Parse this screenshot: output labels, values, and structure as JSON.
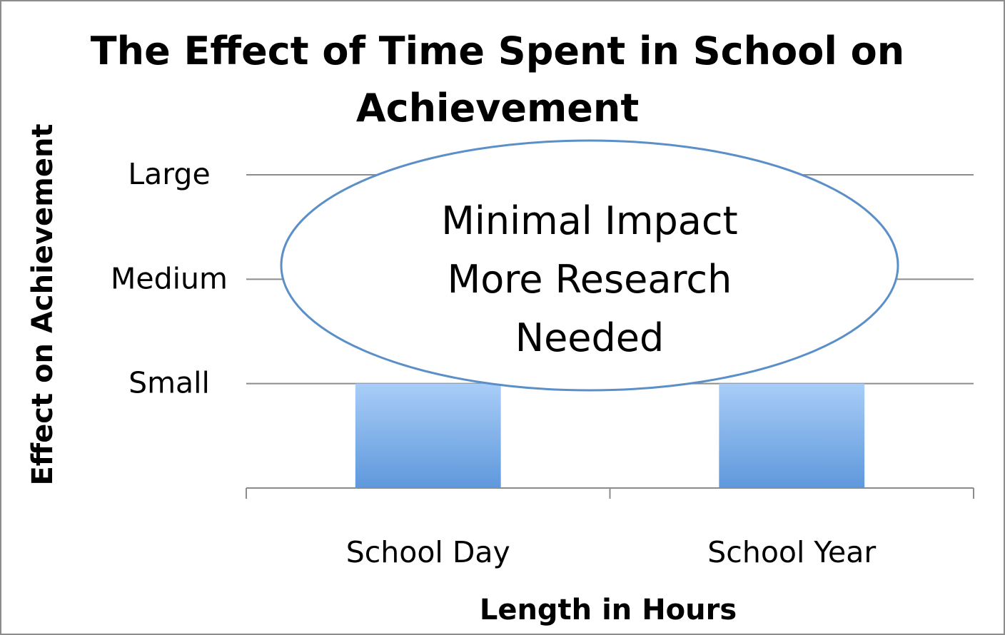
{
  "chart_data": {
    "type": "bar",
    "title": "The Effect of Time Spent in School on Achievement",
    "xlabel": "Length in Hours",
    "ylabel": "Effect on Achievement",
    "categories": [
      "School Day",
      "School Year"
    ],
    "values": [
      1,
      1
    ],
    "y_tick_labels": [
      "Small",
      "Medium",
      "Large"
    ],
    "y_tick_values": [
      1,
      2,
      3
    ],
    "ylim": [
      0,
      3
    ],
    "grid": true,
    "bar_color": "#7fb2ea",
    "annotation": {
      "lines": [
        "Minimal Impact",
        "More Research",
        "Needed"
      ],
      "shape": "ellipse",
      "border_color": "#5b8fc7"
    }
  }
}
